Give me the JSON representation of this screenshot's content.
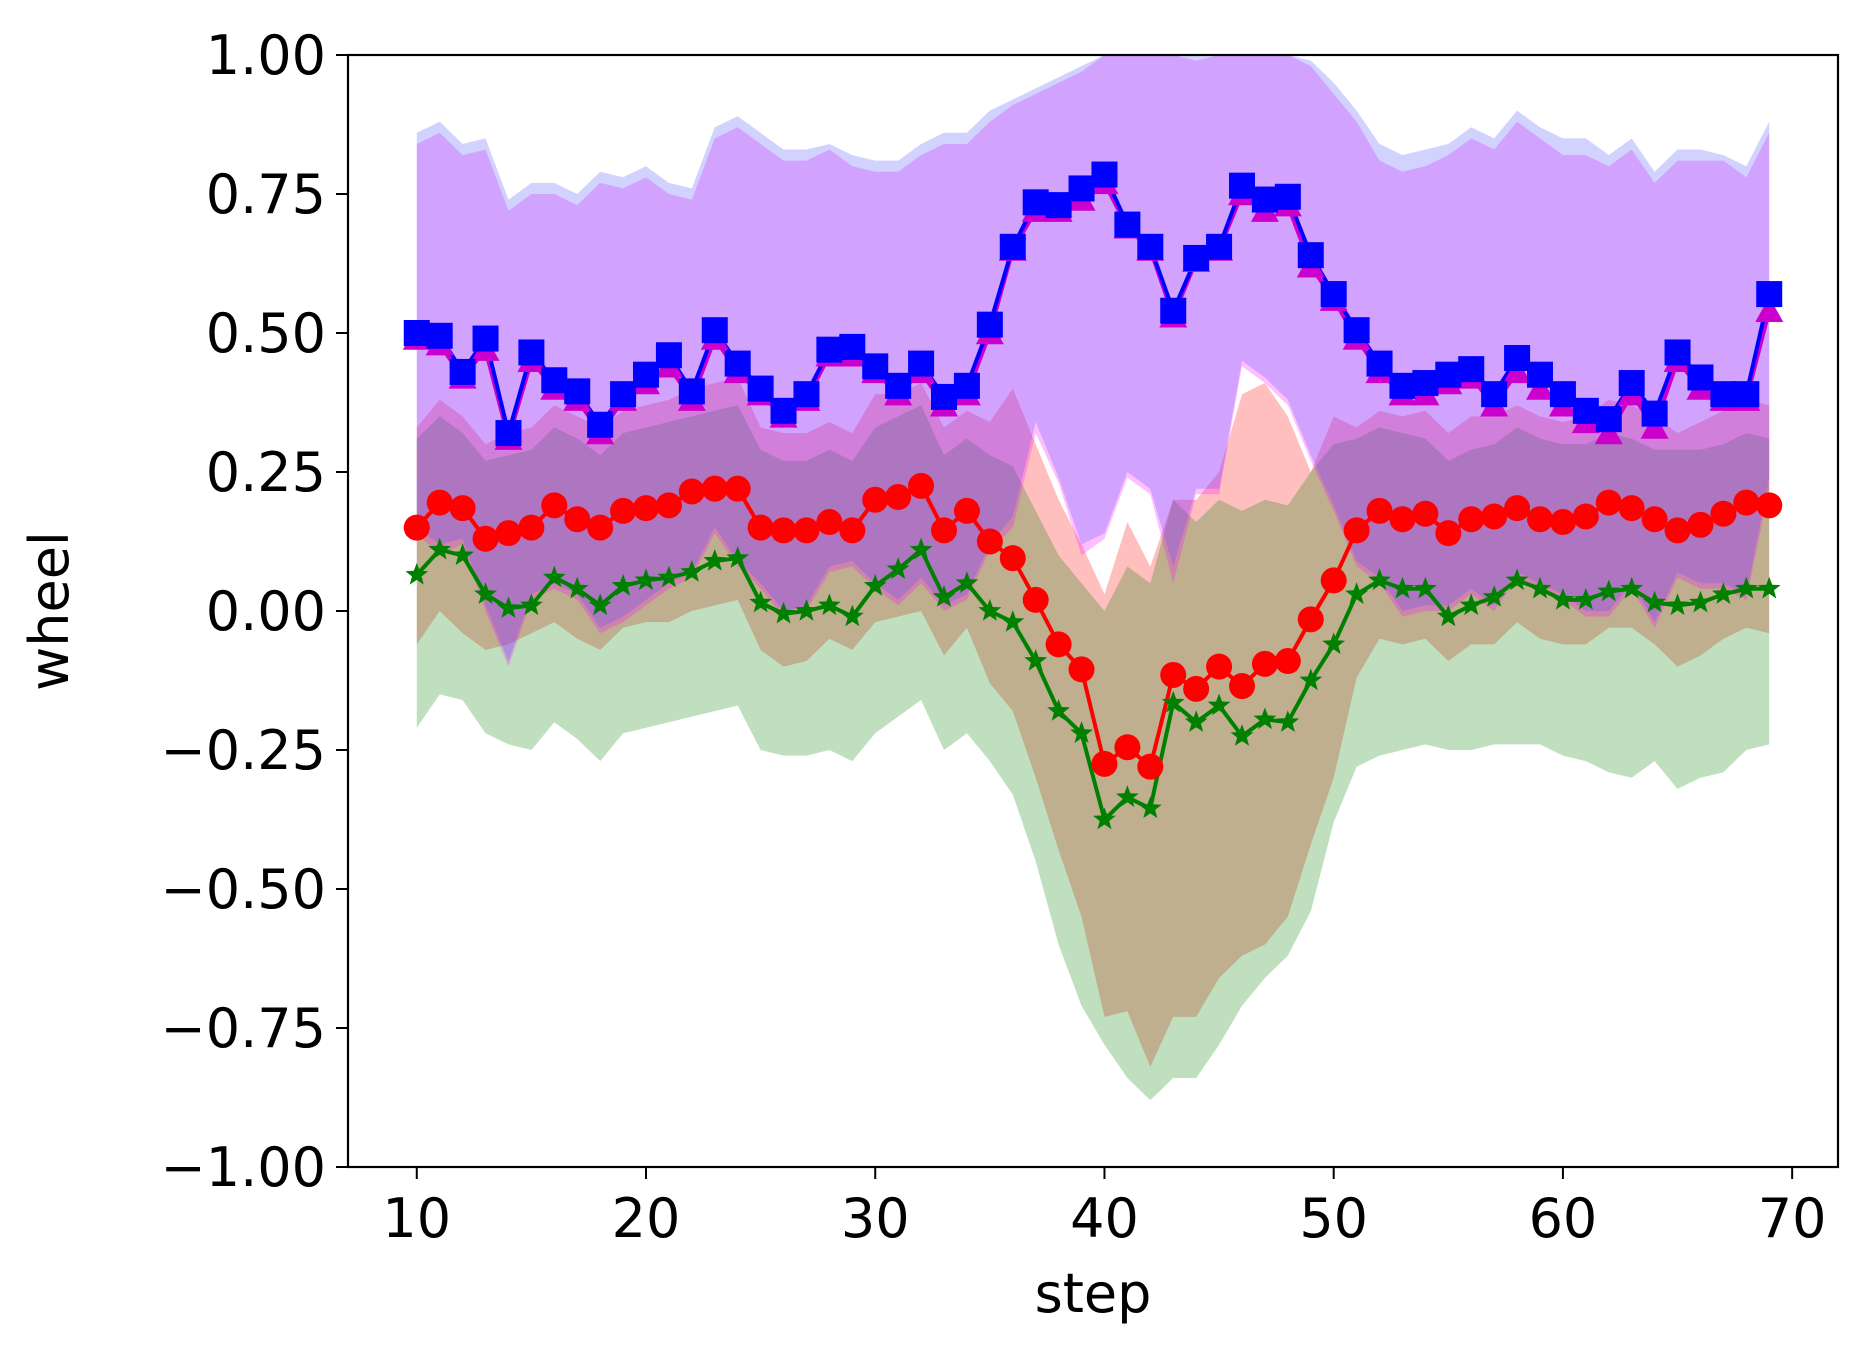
{
  "chart_data": {
    "type": "line",
    "title": "",
    "xlabel": "step",
    "ylabel": "wheel",
    "xlim": [
      7,
      72
    ],
    "ylim": [
      -1.0,
      1.0
    ],
    "xticks": [
      10,
      20,
      30,
      40,
      50,
      60,
      70
    ],
    "xtick_labels": [
      "10",
      "20",
      "30",
      "40",
      "50",
      "60",
      "70"
    ],
    "yticks": [
      -1.0,
      -0.75,
      -0.5,
      -0.25,
      0.0,
      0.25,
      0.5,
      0.75,
      1.0
    ],
    "ytick_labels": [
      "−1.00",
      "−0.75",
      "−0.50",
      "−0.25",
      "0.00",
      "0.25",
      "0.50",
      "0.75",
      "1.00"
    ],
    "grid": false,
    "legend": "none",
    "x": [
      10,
      11,
      12,
      13,
      14,
      15,
      16,
      17,
      18,
      19,
      20,
      21,
      22,
      23,
      24,
      25,
      26,
      27,
      28,
      29,
      30,
      31,
      32,
      33,
      34,
      35,
      36,
      37,
      38,
      39,
      40,
      41,
      42,
      43,
      44,
      45,
      46,
      47,
      48,
      49,
      50,
      51,
      52,
      53,
      54,
      55,
      56,
      57,
      58,
      59,
      60,
      61,
      62,
      63,
      64,
      65,
      66,
      67,
      68,
      69
    ],
    "series": [
      {
        "color": "#ff0000",
        "marker": "circle",
        "band_color": "#ff0000",
        "values": [
          0.15,
          0.195,
          0.185,
          0.13,
          0.14,
          0.15,
          0.19,
          0.165,
          0.15,
          0.18,
          0.185,
          0.19,
          0.215,
          0.22,
          0.22,
          0.15,
          0.145,
          0.145,
          0.16,
          0.145,
          0.2,
          0.205,
          0.225,
          0.145,
          0.18,
          0.125,
          0.095,
          0.02,
          -0.06,
          -0.105,
          -0.275,
          -0.245,
          -0.28,
          -0.115,
          -0.14,
          -0.1,
          -0.135,
          -0.095,
          -0.09,
          -0.015,
          0.055,
          0.145,
          0.18,
          0.165,
          0.175,
          0.14,
          0.165,
          0.17,
          0.185,
          0.165,
          0.16,
          0.17,
          0.195,
          0.185,
          0.165,
          0.145,
          0.155,
          0.175,
          0.195,
          0.19
        ],
        "band_low": [
          -0.06,
          0.0,
          -0.04,
          -0.07,
          -0.06,
          -0.04,
          -0.02,
          -0.05,
          -0.07,
          -0.03,
          -0.02,
          -0.02,
          0.0,
          0.01,
          0.02,
          -0.07,
          -0.1,
          -0.09,
          -0.05,
          -0.07,
          -0.02,
          -0.01,
          0.0,
          -0.08,
          -0.03,
          -0.13,
          -0.18,
          -0.3,
          -0.43,
          -0.55,
          -0.73,
          -0.72,
          -0.82,
          -0.73,
          -0.73,
          -0.66,
          -0.62,
          -0.6,
          -0.55,
          -0.42,
          -0.3,
          -0.12,
          -0.05,
          -0.06,
          -0.05,
          -0.09,
          -0.06,
          -0.06,
          -0.02,
          -0.05,
          -0.06,
          -0.06,
          -0.03,
          -0.03,
          -0.06,
          -0.1,
          -0.08,
          -0.05,
          -0.03,
          -0.04
        ],
        "band_high": [
          0.33,
          0.38,
          0.35,
          0.3,
          0.32,
          0.33,
          0.37,
          0.35,
          0.33,
          0.36,
          0.37,
          0.38,
          0.4,
          0.41,
          0.42,
          0.33,
          0.32,
          0.32,
          0.34,
          0.32,
          0.39,
          0.39,
          0.41,
          0.33,
          0.36,
          0.34,
          0.4,
          0.3,
          0.2,
          0.12,
          0.03,
          0.16,
          0.08,
          0.2,
          0.2,
          0.25,
          0.39,
          0.41,
          0.35,
          0.25,
          0.35,
          0.33,
          0.36,
          0.35,
          0.36,
          0.32,
          0.35,
          0.35,
          0.37,
          0.35,
          0.34,
          0.35,
          0.38,
          0.37,
          0.35,
          0.32,
          0.34,
          0.36,
          0.38,
          0.37
        ]
      },
      {
        "color": "#008000",
        "marker": "star",
        "band_color": "#008000",
        "values": [
          0.065,
          0.11,
          0.1,
          0.03,
          0.005,
          0.01,
          0.06,
          0.04,
          0.01,
          0.045,
          0.055,
          0.06,
          0.07,
          0.09,
          0.095,
          0.015,
          -0.005,
          0.0,
          0.01,
          -0.01,
          0.045,
          0.075,
          0.11,
          0.025,
          0.05,
          0.0,
          -0.02,
          -0.09,
          -0.18,
          -0.22,
          -0.375,
          -0.335,
          -0.355,
          -0.165,
          -0.2,
          -0.17,
          -0.225,
          -0.195,
          -0.2,
          -0.125,
          -0.06,
          0.03,
          0.055,
          0.04,
          0.04,
          -0.01,
          0.01,
          0.025,
          0.055,
          0.04,
          0.02,
          0.02,
          0.035,
          0.04,
          0.015,
          0.01,
          0.015,
          0.03,
          0.04,
          0.04
        ],
        "band_low": [
          -0.21,
          -0.15,
          -0.16,
          -0.22,
          -0.24,
          -0.25,
          -0.2,
          -0.23,
          -0.27,
          -0.22,
          -0.21,
          -0.2,
          -0.19,
          -0.18,
          -0.17,
          -0.25,
          -0.26,
          -0.26,
          -0.25,
          -0.27,
          -0.22,
          -0.19,
          -0.16,
          -0.25,
          -0.22,
          -0.27,
          -0.33,
          -0.45,
          -0.6,
          -0.71,
          -0.78,
          -0.84,
          -0.88,
          -0.84,
          -0.84,
          -0.78,
          -0.71,
          -0.66,
          -0.62,
          -0.54,
          -0.38,
          -0.28,
          -0.26,
          -0.25,
          -0.24,
          -0.25,
          -0.25,
          -0.24,
          -0.24,
          -0.24,
          -0.26,
          -0.27,
          -0.29,
          -0.3,
          -0.27,
          -0.32,
          -0.3,
          -0.29,
          -0.25,
          -0.24
        ],
        "band_high": [
          0.31,
          0.35,
          0.32,
          0.27,
          0.28,
          0.29,
          0.33,
          0.31,
          0.28,
          0.32,
          0.33,
          0.34,
          0.35,
          0.36,
          0.37,
          0.29,
          0.27,
          0.27,
          0.29,
          0.27,
          0.33,
          0.35,
          0.37,
          0.28,
          0.31,
          0.28,
          0.26,
          0.18,
          0.1,
          0.05,
          0.0,
          0.08,
          0.05,
          0.2,
          0.16,
          0.2,
          0.18,
          0.2,
          0.19,
          0.25,
          0.3,
          0.31,
          0.33,
          0.32,
          0.31,
          0.27,
          0.29,
          0.3,
          0.33,
          0.31,
          0.3,
          0.3,
          0.32,
          0.31,
          0.29,
          0.29,
          0.29,
          0.3,
          0.32,
          0.31
        ]
      },
      {
        "color": "#cc00cc",
        "marker": "triangle-up",
        "band_color": "#ff00ff",
        "values": [
          0.49,
          0.48,
          0.42,
          0.47,
          0.31,
          0.45,
          0.4,
          0.38,
          0.32,
          0.38,
          0.41,
          0.44,
          0.38,
          0.49,
          0.43,
          0.39,
          0.35,
          0.38,
          0.46,
          0.46,
          0.43,
          0.39,
          0.43,
          0.37,
          0.39,
          0.5,
          0.65,
          0.72,
          0.72,
          0.74,
          0.77,
          0.69,
          0.65,
          0.53,
          0.63,
          0.65,
          0.75,
          0.72,
          0.73,
          0.62,
          0.56,
          0.49,
          0.43,
          0.39,
          0.39,
          0.41,
          0.42,
          0.37,
          0.43,
          0.4,
          0.37,
          0.34,
          0.32,
          0.39,
          0.33,
          0.45,
          0.4,
          0.38,
          0.38,
          0.54
        ],
        "band_low": [
          0.14,
          0.1,
          0.12,
          0.0,
          -0.1,
          0.02,
          0.04,
          0.02,
          -0.04,
          -0.02,
          0.01,
          0.04,
          0.06,
          0.14,
          0.08,
          0.04,
          -0.01,
          0.0,
          0.07,
          0.08,
          0.04,
          0.01,
          0.05,
          0.0,
          0.02,
          0.11,
          0.15,
          0.32,
          0.23,
          0.1,
          0.13,
          0.24,
          0.21,
          0.05,
          0.21,
          0.21,
          0.44,
          0.41,
          0.37,
          0.27,
          0.18,
          0.08,
          0.05,
          -0.01,
          0.0,
          0.0,
          0.03,
          0.0,
          0.06,
          0.04,
          0.02,
          -0.01,
          -0.01,
          0.04,
          -0.03,
          0.06,
          0.04,
          0.04,
          0.02,
          0.22
        ],
        "band_high": [
          0.84,
          0.86,
          0.82,
          0.83,
          0.72,
          0.75,
          0.75,
          0.73,
          0.77,
          0.76,
          0.78,
          0.75,
          0.74,
          0.85,
          0.87,
          0.84,
          0.81,
          0.81,
          0.83,
          0.8,
          0.79,
          0.79,
          0.82,
          0.84,
          0.84,
          0.88,
          0.91,
          0.93,
          0.95,
          0.97,
          1.0,
          1.0,
          1.0,
          1.0,
          0.99,
          1.0,
          1.0,
          1.0,
          1.0,
          0.98,
          0.93,
          0.88,
          0.81,
          0.79,
          0.8,
          0.82,
          0.85,
          0.83,
          0.88,
          0.85,
          0.82,
          0.82,
          0.8,
          0.83,
          0.77,
          0.81,
          0.81,
          0.81,
          0.78,
          0.86
        ]
      },
      {
        "color": "#0000ff",
        "marker": "square",
        "band_color": "#4d4dff",
        "values": [
          0.5,
          0.495,
          0.43,
          0.49,
          0.32,
          0.465,
          0.415,
          0.395,
          0.335,
          0.39,
          0.425,
          0.46,
          0.395,
          0.505,
          0.445,
          0.4,
          0.36,
          0.39,
          0.47,
          0.475,
          0.44,
          0.405,
          0.445,
          0.385,
          0.405,
          0.515,
          0.655,
          0.735,
          0.73,
          0.76,
          0.785,
          0.695,
          0.655,
          0.54,
          0.635,
          0.655,
          0.765,
          0.74,
          0.745,
          0.64,
          0.57,
          0.505,
          0.445,
          0.405,
          0.41,
          0.425,
          0.435,
          0.39,
          0.455,
          0.425,
          0.39,
          0.36,
          0.345,
          0.41,
          0.355,
          0.465,
          0.42,
          0.39,
          0.39,
          0.57
        ],
        "band_low": [
          0.15,
          0.12,
          0.13,
          0.01,
          -0.09,
          0.03,
          0.05,
          0.03,
          -0.03,
          -0.01,
          0.02,
          0.05,
          0.07,
          0.15,
          0.09,
          0.05,
          0.0,
          0.01,
          0.08,
          0.09,
          0.05,
          0.02,
          0.06,
          0.01,
          0.03,
          0.12,
          0.17,
          0.34,
          0.24,
          0.12,
          0.14,
          0.25,
          0.22,
          0.08,
          0.22,
          0.22,
          0.45,
          0.42,
          0.38,
          0.28,
          0.19,
          0.09,
          0.06,
          0.0,
          0.01,
          0.01,
          0.04,
          0.01,
          0.07,
          0.05,
          0.03,
          0.0,
          0.0,
          0.05,
          -0.02,
          0.07,
          0.05,
          0.05,
          0.03,
          0.24
        ],
        "band_high": [
          0.86,
          0.88,
          0.84,
          0.85,
          0.74,
          0.77,
          0.77,
          0.75,
          0.79,
          0.78,
          0.8,
          0.77,
          0.76,
          0.87,
          0.89,
          0.86,
          0.83,
          0.83,
          0.84,
          0.82,
          0.81,
          0.81,
          0.84,
          0.86,
          0.86,
          0.9,
          0.92,
          0.94,
          0.96,
          0.98,
          1.0,
          1.0,
          1.0,
          1.0,
          1.0,
          1.0,
          1.0,
          1.0,
          1.0,
          0.99,
          0.95,
          0.9,
          0.84,
          0.82,
          0.83,
          0.84,
          0.87,
          0.85,
          0.9,
          0.87,
          0.85,
          0.85,
          0.82,
          0.85,
          0.79,
          0.83,
          0.83,
          0.82,
          0.8,
          0.88
        ]
      }
    ]
  }
}
